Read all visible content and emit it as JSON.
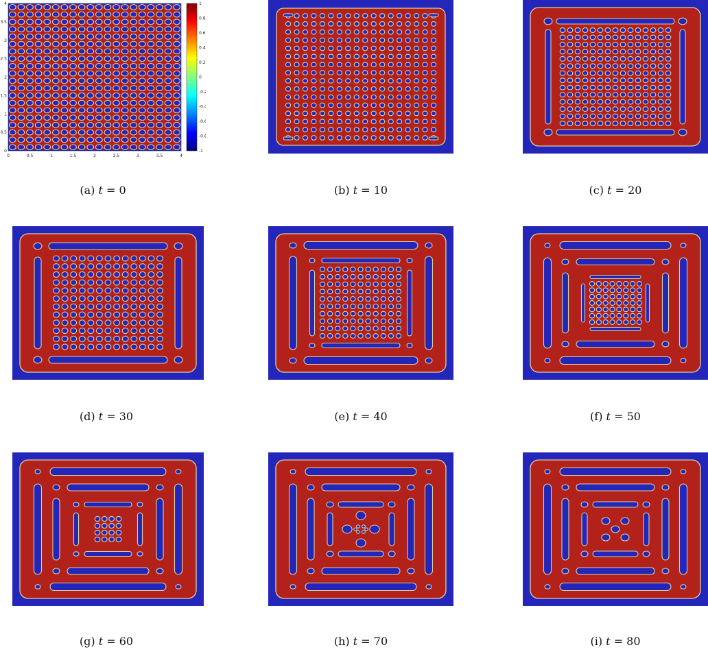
{
  "figure": {
    "colors": {
      "phase_low": "#2326b8",
      "phase_high": "#b2221b",
      "interface": "#d9d2a6"
    },
    "panels": [
      {
        "id": "a",
        "label": "(a)",
        "var": "t",
        "eq": "= 0"
      },
      {
        "id": "b",
        "label": "(b)",
        "var": "t",
        "eq": "= 10"
      },
      {
        "id": "c",
        "label": "(c)",
        "var": "t",
        "eq": "= 20"
      },
      {
        "id": "d",
        "label": "(d)",
        "var": "t",
        "eq": "= 30"
      },
      {
        "id": "e",
        "label": "(e)",
        "var": "t",
        "eq": "= 40"
      },
      {
        "id": "f",
        "label": "(f)",
        "var": "t",
        "eq": "= 50"
      },
      {
        "id": "g",
        "label": "(g)",
        "var": "t",
        "eq": "= 60"
      },
      {
        "id": "h",
        "label": "(h)",
        "var": "t",
        "eq": "= 70"
      },
      {
        "id": "i",
        "label": "(i)",
        "var": "t",
        "eq": "= 80"
      }
    ],
    "axes": {
      "x_ticks": [
        "0",
        "0.5",
        "1",
        "1.5",
        "2",
        "2.5",
        "3",
        "3.5",
        "4"
      ],
      "y_ticks": [
        "0",
        "0.5",
        "1",
        "1.5",
        "2",
        "2.5",
        "3",
        "3.5",
        "4"
      ],
      "colorbar_ticks": [
        "1",
        "0.8",
        "0.6",
        "0.4",
        "0.2",
        "0",
        "-0.2",
        "-0.4",
        "-0.6",
        "-0.8",
        "-1"
      ]
    }
  }
}
